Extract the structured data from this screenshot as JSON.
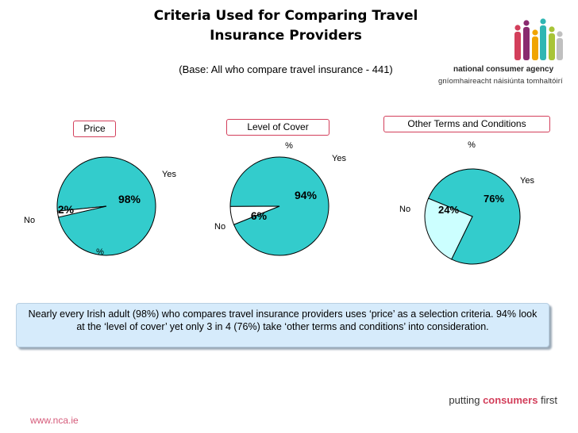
{
  "header": {
    "title_line1": "Criteria Used for Comparing Travel",
    "title_line2": "Insurance Providers",
    "subtitle": "(Base:  All who compare travel insurance - 441)"
  },
  "logo": {
    "line1_part1": "national ",
    "line1_accent": "consumer",
    "line1_part2": " agency",
    "line2": "gníomhaireacht náisiúnta tomhaltóirí",
    "figure_colors": [
      "#d33f5b",
      "#8a2a6f",
      "#f0a500",
      "#2fb6b3",
      "#a8c437",
      "#c0c0c0"
    ]
  },
  "chart_data": [
    {
      "type": "pie",
      "title": "Price",
      "unit_label": "%",
      "slices": [
        {
          "label": "Yes",
          "value": 98,
          "value_label": "98%",
          "color": "#33cccc"
        },
        {
          "label": "No",
          "value": 2,
          "value_label": "2%",
          "color": "#ffffff"
        }
      ]
    },
    {
      "type": "pie",
      "title": "Level of Cover",
      "unit_label": "%",
      "slices": [
        {
          "label": "Yes",
          "value": 94,
          "value_label": "94%",
          "color": "#33cccc"
        },
        {
          "label": "No",
          "value": 6,
          "value_label": "6%",
          "color": "#ffffff"
        }
      ]
    },
    {
      "type": "pie",
      "title": "Other Terms and Conditions",
      "unit_label": "%",
      "slices": [
        {
          "label": "Yes",
          "value": 76,
          "value_label": "76%",
          "color": "#33cccc"
        },
        {
          "label": "No",
          "value": 24,
          "value_label": "24%",
          "color": "#ccffff"
        }
      ]
    }
  ],
  "summary": "Nearly every Irish adult (98%) who compares travel insurance providers uses ‘price’ as a selection criteria. 94% look at the ‘level of cover’ yet only 3 in 4 (76%) take ‘other terms and conditions’ into consideration.",
  "footer": {
    "tagline_part1": "putting ",
    "tagline_accent": "consumers",
    "tagline_part2": " first",
    "website": "www.nca.ie"
  }
}
